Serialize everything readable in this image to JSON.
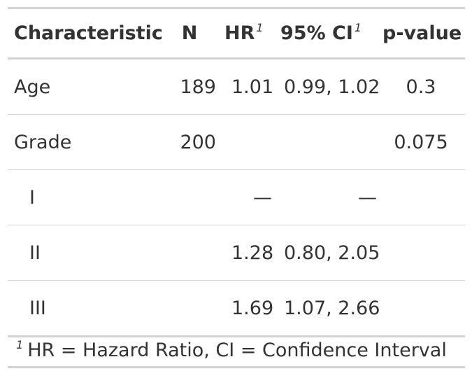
{
  "table": {
    "headers": {
      "characteristic": "Characteristic",
      "n": "N",
      "hr": "HR",
      "hr_footnote_mark": "1",
      "ci": "95% CI",
      "ci_footnote_mark": "1",
      "p_value": "p-value"
    },
    "rows": [
      {
        "characteristic": "Age",
        "n": "189",
        "hr": "1.01",
        "ci": "0.99, 1.02",
        "p": "0.3"
      },
      {
        "characteristic": "Grade",
        "n": "200",
        "hr": "",
        "ci": "",
        "p": "0.075"
      },
      {
        "characteristic": "I",
        "n": "",
        "hr": "—",
        "ci": "—",
        "p": ""
      },
      {
        "characteristic": "II",
        "n": "",
        "hr": "1.28",
        "ci": "0.80, 2.05",
        "p": ""
      },
      {
        "characteristic": "III",
        "n": "",
        "hr": "1.69",
        "ci": "1.07, 2.66",
        "p": ""
      }
    ],
    "footnote": {
      "mark": "1",
      "text": "HR = Hazard Ratio, CI = Confidence Interval"
    }
  }
}
